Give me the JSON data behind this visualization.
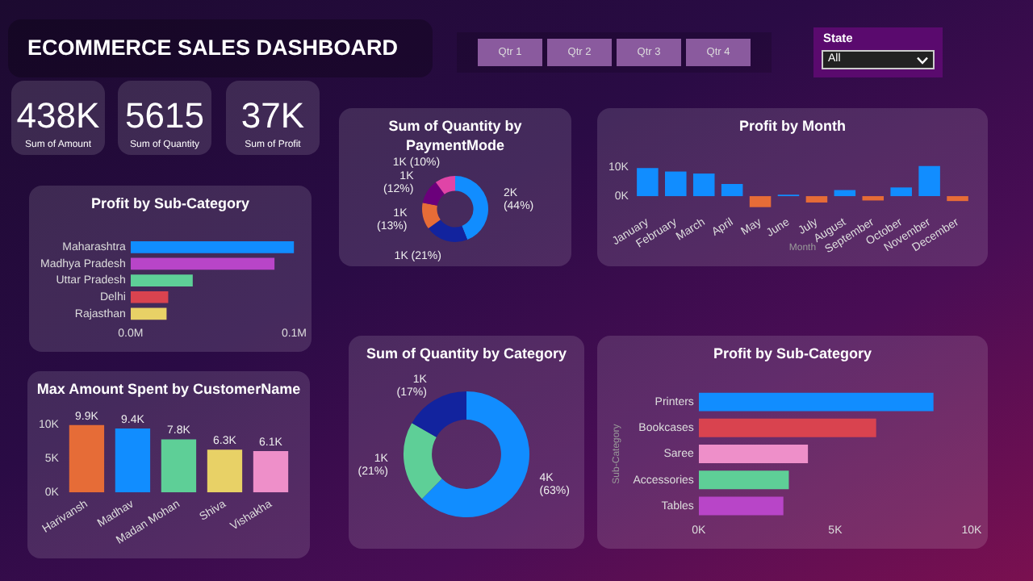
{
  "chart_data": [
    {
      "type": "other",
      "title": "ECOMMERCE SALES DASHBOARD",
      "annotations": [
        "438K",
        "Sum of Amount",
        "5615",
        "Sum of Quantity",
        "37K",
        "Sum of Profit",
        "Qtr 1",
        "Qtr 2",
        "Qtr 3",
        "Qtr 4",
        "State",
        "All"
      ]
    },
    {
      "type": "bar",
      "orientation": "horizontal",
      "title": "Profit by Sub-Category",
      "categories": [
        "Maharashtra",
        "Madhya Pradesh",
        "Uttar Pradesh",
        "Delhi",
        "Rajasthan"
      ],
      "values": [
        0.1,
        0.088,
        0.038,
        0.023,
        0.022
      ],
      "colors": [
        "#118dff",
        "#b845c8",
        "#5ecf97",
        "#d9434f",
        "#e8d166"
      ],
      "xlim": [
        0,
        0.1
      ],
      "xticks": [
        {
          "value": 0,
          "label": "0.0M"
        },
        {
          "value": 0.1,
          "label": "0.1M"
        }
      ]
    },
    {
      "type": "donut",
      "title": "Sum of Quantity by PaymentMode",
      "categories": [
        null,
        null,
        null,
        null,
        null
      ],
      "values": [
        44,
        21,
        13,
        12,
        10
      ],
      "colors": [
        "#118dff",
        "#12239e",
        "#e66c37",
        "#6b007b",
        "#e044a7"
      ],
      "value_labels": [
        "2K (44%)",
        "1K (21%)",
        "1K (13%)",
        "1K (12%)",
        "1K (10%)"
      ]
    },
    {
      "type": "bar",
      "title": "Profit by Month",
      "xlabel": "Month",
      "categories": [
        "January",
        "February",
        "March",
        "April",
        "May",
        "June",
        "July",
        "August",
        "September",
        "October",
        "November",
        "December"
      ],
      "values": [
        9700,
        8500,
        7800,
        4200,
        -3800,
        500,
        -2200,
        2100,
        -1500,
        3000,
        10400,
        -1700
      ],
      "colors": [
        "#118dff",
        "#118dff",
        "#118dff",
        "#118dff",
        "#e66c37",
        "#118dff",
        "#e66c37",
        "#118dff",
        "#e66c37",
        "#118dff",
        "#118dff",
        "#e66c37"
      ],
      "ylim": [
        -5000,
        12000
      ],
      "yticks": [
        {
          "value": 0,
          "label": "0K"
        },
        {
          "value": 10000,
          "label": "10K"
        }
      ]
    },
    {
      "type": "bar",
      "title": "Max Amount Spent by CustomerName",
      "categories": [
        "Harivansh",
        "Madhav",
        "Madan Mohan",
        "Shiva",
        "Vishakha"
      ],
      "values": [
        9900,
        9400,
        7800,
        6300,
        6100
      ],
      "colors": [
        "#e66c37",
        "#118dff",
        "#5ecf97",
        "#e8d166",
        "#ee8fc9"
      ],
      "value_labels": [
        "9.9K",
        "9.4K",
        "7.8K",
        "6.3K",
        "6.1K"
      ],
      "ylim": [
        0,
        10000
      ],
      "yticks": [
        {
          "value": 0,
          "label": "0K"
        },
        {
          "value": 5000,
          "label": "5K"
        },
        {
          "value": 10000,
          "label": "10K"
        }
      ]
    },
    {
      "type": "donut",
      "title": "Sum of Quantity by Category",
      "categories": [
        null,
        null,
        null
      ],
      "values": [
        62.5,
        20.8,
        16.7
      ],
      "colors": [
        "#118dff",
        "#5ecf97",
        "#12239e"
      ],
      "value_labels": [
        "4K (63%)",
        "1K (21%)",
        "1K (17%)"
      ]
    },
    {
      "type": "bar",
      "orientation": "horizontal",
      "title": "Profit by Sub-Category",
      "ylabel": "Sub-Category",
      "categories": [
        "Printers",
        "Bookcases",
        "Saree",
        "Accessories",
        "Tables"
      ],
      "values": [
        8600,
        6500,
        4000,
        3300,
        3100
      ],
      "colors": [
        "#118dff",
        "#d9434f",
        "#ee8fc9",
        "#5ecf97",
        "#b845c8"
      ],
      "xlim": [
        0,
        10000
      ],
      "xticks": [
        {
          "value": 0,
          "label": "0K"
        },
        {
          "value": 5000,
          "label": "5K"
        },
        {
          "value": 10000,
          "label": "10K"
        }
      ]
    }
  ]
}
